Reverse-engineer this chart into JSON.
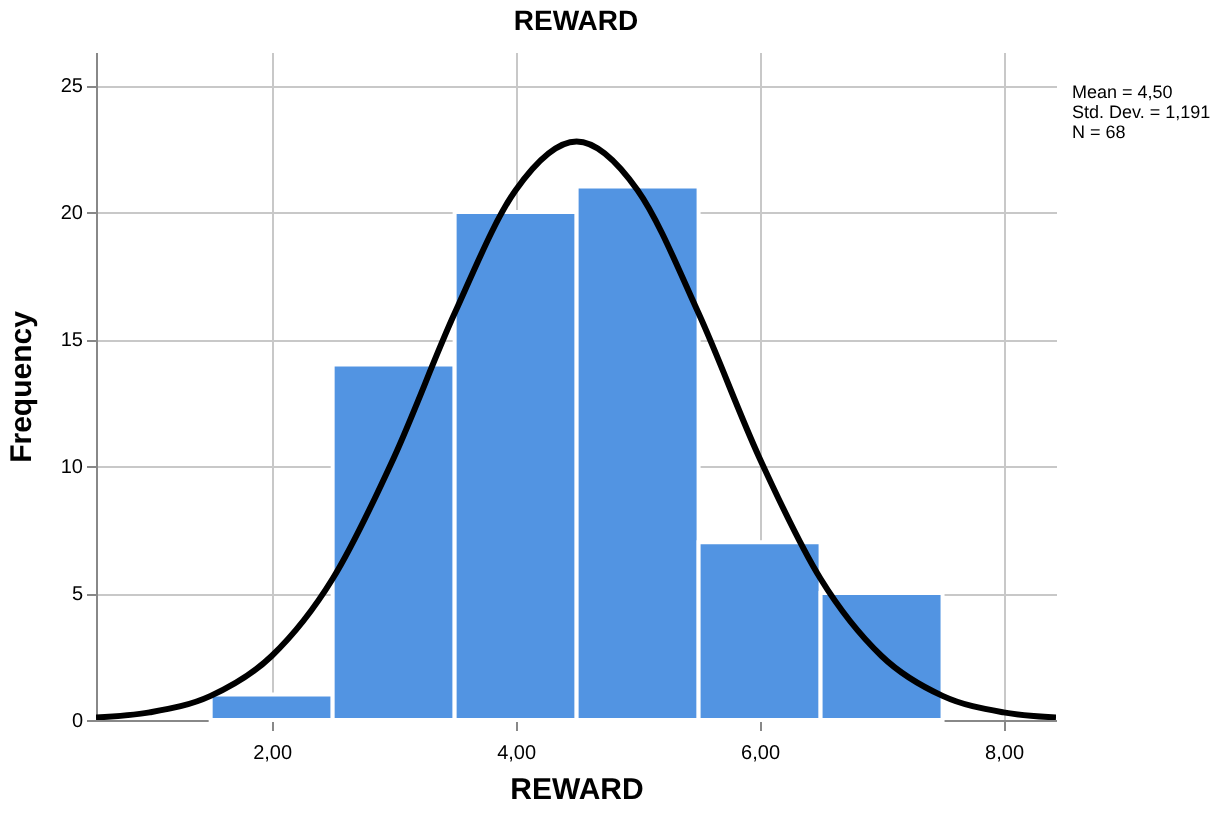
{
  "chart_data": {
    "type": "histogram",
    "title": "REWARD",
    "xlabel": "REWARD",
    "ylabel": "Frequency",
    "bins": [
      1.5,
      2.5,
      3.5,
      4.5,
      5.5,
      6.5,
      7.5
    ],
    "values": [
      1,
      14,
      20,
      21,
      7,
      5
    ],
    "color": "#5294e2",
    "series": [
      {
        "type": "line",
        "color": "#000000",
        "line_style": "solid",
        "x": [
          0.56,
          1.0,
          1.5,
          2.0,
          2.5,
          3.0,
          3.5,
          4.0,
          4.5,
          5.0,
          5.5,
          6.0,
          6.5,
          7.0,
          7.5,
          8.0,
          8.43
        ],
        "values": [
          0.1,
          0.3,
          0.95,
          2.52,
          5.56,
          10.31,
          16.01,
          20.86,
          22.78,
          20.86,
          16.01,
          10.31,
          5.56,
          2.52,
          0.95,
          0.3,
          0.1
        ]
      }
    ],
    "xlim": [
      0.56,
      8.43
    ],
    "xticks": [
      {
        "value": 2,
        "label": "2,00"
      },
      {
        "value": 4,
        "label": "4,00"
      },
      {
        "value": 6,
        "label": "6,00"
      },
      {
        "value": 8,
        "label": "8,00"
      }
    ],
    "ylim": [
      0,
      26.3
    ],
    "yticks": [
      0,
      5,
      10,
      15,
      20,
      25
    ],
    "grid": true,
    "annotations": [
      "Mean = 4,50",
      "Std. Dev. = 1,191",
      "N = 68"
    ]
  }
}
